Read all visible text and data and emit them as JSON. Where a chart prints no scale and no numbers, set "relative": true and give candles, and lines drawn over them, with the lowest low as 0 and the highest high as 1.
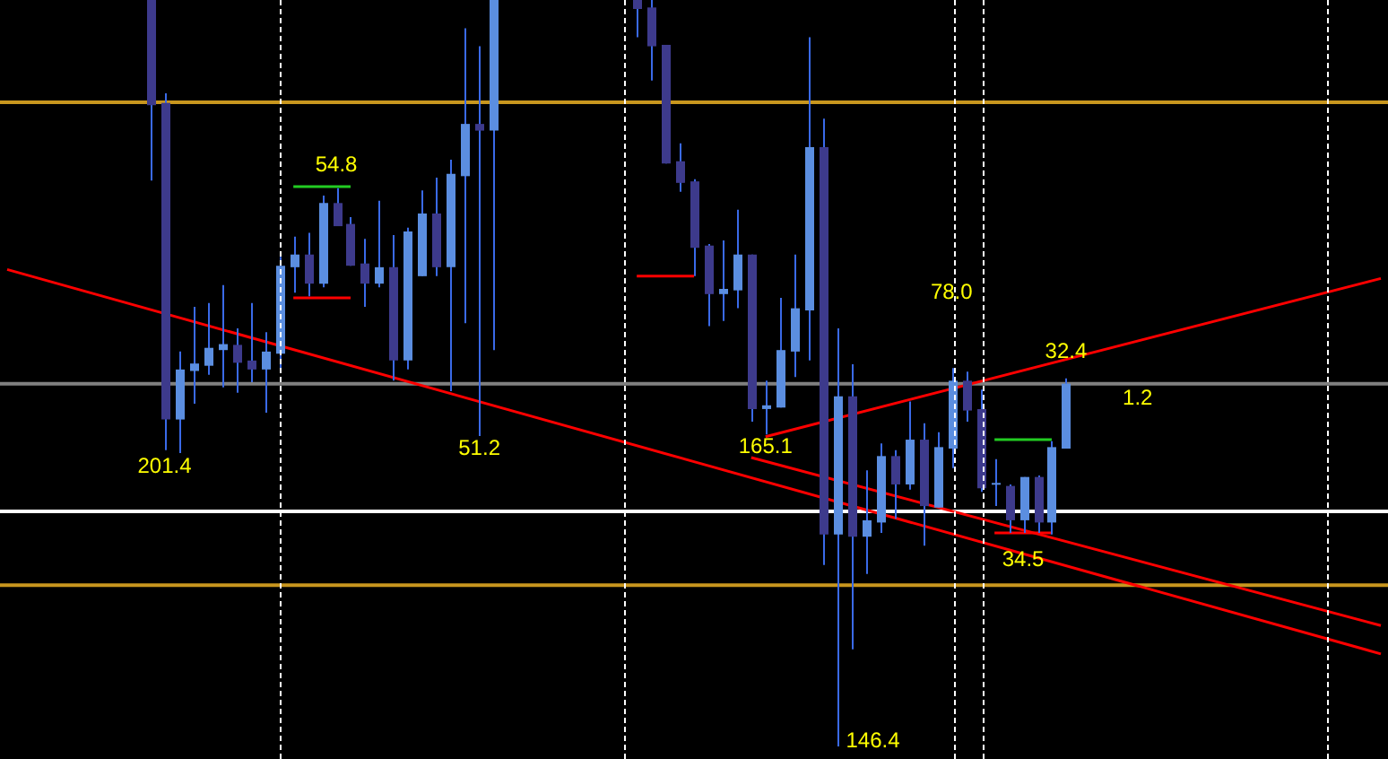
{
  "chart_data": {
    "type": "candlestick",
    "relative": true,
    "legend": false,
    "categories": [
      null,
      null,
      null,
      null,
      null,
      null,
      null,
      null,
      null,
      null,
      null,
      null,
      null,
      null,
      null,
      null,
      null,
      null,
      null,
      null,
      null,
      null,
      null,
      null,
      null,
      null,
      null,
      null,
      null,
      null,
      null,
      null,
      null,
      null,
      null,
      null,
      null,
      null,
      null,
      null,
      null,
      null,
      null,
      null,
      null,
      null,
      null,
      null,
      null,
      null,
      null,
      null,
      null,
      null,
      null,
      null,
      null,
      null,
      null,
      null,
      null,
      null,
      null,
      null,
      null,
      null,
      null,
      null,
      null,
      null,
      null,
      null,
      null,
      null,
      null,
      null,
      null,
      null,
      null,
      null,
      null,
      null,
      null,
      null,
      null,
      null,
      null,
      null,
      null,
      null,
      null,
      null,
      null,
      null,
      null,
      null,
      null
    ],
    "ohlc": [
      null,
      null,
      null,
      null,
      null,
      null,
      null,
      null,
      null,
      null,
      [
        1,
        1,
        0.758,
        0.859
      ],
      [
        0.862,
        0.875,
        0.397,
        0.438
      ],
      [
        0.438,
        0.529,
        0.393,
        0.505
      ],
      [
        0.503,
        0.589,
        0.459,
        0.513
      ],
      [
        0.51,
        0.594,
        0.498,
        0.534
      ],
      [
        0.531,
        0.618,
        0.481,
        0.539
      ],
      [
        0.538,
        0.56,
        0.474,
        0.514
      ],
      [
        0.517,
        0.594,
        0.488,
        0.505
      ],
      [
        0.505,
        0.555,
        0.447,
        0.529
      ],
      [
        0.526,
        0.656,
        0.503,
        0.644
      ],
      [
        0.642,
        0.683,
        0.608,
        0.659
      ],
      [
        0.659,
        0.688,
        0.603,
        0.62
      ],
      [
        0.62,
        0.738,
        0.615,
        0.728
      ],
      [
        0.728,
        0.748,
        0.697,
        0.697
      ],
      [
        0.7,
        0.709,
        0.644,
        0.644
      ],
      [
        0.647,
        0.68,
        0.589,
        0.62
      ],
      [
        0.62,
        0.731,
        0.615,
        0.642
      ],
      [
        0.642,
        0.685,
        0.49,
        0.517
      ],
      [
        0.517,
        0.695,
        0.505,
        0.69
      ],
      [
        0.63,
        0.745,
        0.63,
        0.714
      ],
      [
        0.714,
        0.762,
        0.63,
        0.642
      ],
      [
        0.642,
        0.786,
        0.476,
        0.767
      ],
      [
        0.764,
        0.962,
        0.567,
        0.834
      ],
      [
        0.834,
        0.938,
        0.416,
        0.825
      ],
      [
        0.825,
        1,
        0.531,
        1
      ],
      null,
      null,
      null,
      null,
      null,
      null,
      null,
      null,
      null,
      [
        1,
        1,
        0.95,
        0.988
      ],
      [
        0.99,
        1,
        0.892,
        0.938
      ],
      [
        0.94,
        0.94,
        0.781,
        0.781
      ],
      [
        0.784,
        0.808,
        0.743,
        0.755
      ],
      [
        0.757,
        0.76,
        0.63,
        0.668
      ],
      [
        0.671,
        0.673,
        0.563,
        0.606
      ],
      [
        0.606,
        0.678,
        0.57,
        0.613
      ],
      [
        0.611,
        0.719,
        0.587,
        0.659
      ],
      [
        0.659,
        0.659,
        0.435,
        0.452
      ],
      [
        0.452,
        0.49,
        0.418,
        0.457
      ],
      [
        0.454,
        0.601,
        0.454,
        0.531
      ],
      [
        0.529,
        0.659,
        0.495,
        0.587
      ],
      [
        0.584,
        0.95,
        0.517,
        0.803
      ],
      [
        0.803,
        0.841,
        0.243,
        0.284
      ],
      [
        0.284,
        0.56,
        0,
        0.469
      ],
      [
        0.469,
        0.512,
        0.13,
        0.281
      ],
      [
        0.281,
        0.37,
        0.231,
        0.303
      ],
      [
        0.3,
        0.406,
        0.286,
        0.389
      ],
      [
        0.389,
        0.397,
        0.305,
        0.351
      ],
      [
        0.351,
        0.462,
        0.344,
        0.411
      ],
      [
        0.411,
        0.433,
        0.269,
        0.322
      ],
      [
        0.32,
        0.421,
        0.32,
        0.401
      ],
      [
        0.399,
        0.507,
        0.373,
        0.49
      ],
      [
        0.49,
        0.502,
        0.435,
        0.45
      ],
      [
        0.452,
        0.478,
        0.341,
        0.346
      ],
      [
        0.353,
        0.385,
        0.322,
        0.353
      ],
      [
        0.349,
        0.351,
        0.286,
        0.303
      ],
      [
        0.303,
        0.361,
        0.286,
        0.361
      ],
      [
        0.361,
        0.363,
        0.286,
        0.3
      ],
      [
        0.3,
        0.409,
        0.284,
        0.401
      ],
      [
        0.399,
        0.493,
        0.399,
        0.486
      ],
      null,
      null,
      null,
      null,
      null,
      null,
      null,
      null,
      null,
      null,
      null,
      null,
      null,
      null,
      null,
      null,
      null,
      null,
      null,
      null,
      null,
      null
    ],
    "series": [
      {
        "type": "line",
        "color": "#ff0000",
        "values": [
          0.639,
          null,
          null,
          null,
          null,
          null,
          null,
          null,
          null,
          null,
          null,
          null,
          null,
          null,
          null,
          null,
          null,
          null,
          null,
          null,
          null,
          null,
          null,
          null,
          null,
          null,
          null,
          null,
          null,
          null,
          null,
          null,
          null,
          null,
          null,
          null,
          null,
          null,
          null,
          null,
          null,
          null,
          null,
          null,
          null,
          null,
          null,
          null,
          null,
          null,
          null,
          null,
          null,
          null,
          null,
          null,
          null,
          null,
          null,
          null,
          null,
          null,
          null,
          null,
          null,
          null,
          null,
          null,
          null,
          null,
          null,
          null,
          null,
          null,
          null,
          null,
          null,
          null,
          null,
          null,
          null,
          null,
          null,
          null,
          null,
          null,
          null,
          null,
          null,
          null,
          null,
          null,
          null,
          null,
          null,
          null,
          0.124
        ]
      },
      {
        "type": "line",
        "color": "#ff0000",
        "values": [
          null,
          null,
          null,
          null,
          null,
          null,
          null,
          null,
          null,
          null,
          null,
          null,
          null,
          null,
          null,
          null,
          null,
          null,
          null,
          null,
          null,
          null,
          null,
          null,
          null,
          null,
          null,
          null,
          null,
          null,
          null,
          null,
          null,
          null,
          null,
          null,
          null,
          null,
          null,
          null,
          null,
          null,
          null,
          null,
          null,
          null,
          null,
          null,
          null,
          null,
          null,
          null,
          0.387,
          null,
          null,
          null,
          null,
          null,
          null,
          null,
          null,
          null,
          null,
          null,
          null,
          null,
          null,
          null,
          null,
          null,
          null,
          null,
          null,
          null,
          null,
          null,
          null,
          null,
          null,
          null,
          null,
          null,
          null,
          null,
          null,
          null,
          null,
          null,
          null,
          null,
          null,
          null,
          null,
          null,
          null,
          null,
          0.162
        ]
      },
      {
        "type": "line",
        "color": "#ff0000",
        "values": [
          null,
          null,
          null,
          null,
          null,
          null,
          null,
          null,
          null,
          null,
          null,
          null,
          null,
          null,
          null,
          null,
          null,
          null,
          null,
          null,
          null,
          null,
          null,
          null,
          null,
          null,
          null,
          null,
          null,
          null,
          null,
          null,
          null,
          null,
          null,
          null,
          null,
          null,
          null,
          null,
          null,
          null,
          null,
          null,
          null,
          null,
          null,
          null,
          null,
          null,
          null,
          null,
          null,
          0.415,
          null,
          null,
          null,
          null,
          null,
          null,
          null,
          null,
          null,
          null,
          null,
          null,
          null,
          null,
          null,
          null,
          null,
          null,
          null,
          null,
          null,
          null,
          null,
          null,
          null,
          null,
          null,
          null,
          null,
          null,
          null,
          null,
          null,
          null,
          null,
          null,
          null,
          null,
          null,
          null,
          null,
          null,
          0.627
        ]
      },
      {
        "type": "line",
        "color": "#22cc22",
        "values": [
          null,
          null,
          null,
          null,
          null,
          null,
          null,
          null,
          null,
          null,
          null,
          null,
          null,
          null,
          null,
          null,
          null,
          null,
          null,
          null,
          0.75,
          null,
          null,
          null,
          0.75,
          null,
          null,
          null,
          null,
          null,
          null,
          null,
          null,
          null,
          null,
          null,
          null,
          null,
          null,
          null,
          null,
          null,
          null,
          null,
          null,
          null,
          null,
          null,
          null,
          null,
          null,
          null,
          null,
          null,
          null,
          null,
          null,
          null,
          null,
          null,
          null,
          null,
          null,
          null,
          null,
          null,
          null,
          null,
          null,
          null,
          null,
          null,
          null,
          null,
          null,
          null,
          null,
          null,
          null,
          null,
          null,
          null,
          null,
          null,
          null,
          null,
          null,
          null,
          null,
          null,
          null,
          null,
          null,
          null,
          null,
          null,
          null
        ]
      },
      {
        "type": "line",
        "color": "#ff0000",
        "values": [
          null,
          null,
          null,
          null,
          null,
          null,
          null,
          null,
          null,
          null,
          null,
          null,
          null,
          null,
          null,
          null,
          null,
          null,
          null,
          null,
          0.601,
          null,
          null,
          null,
          0.601,
          null,
          null,
          null,
          null,
          null,
          null,
          null,
          null,
          null,
          null,
          null,
          null,
          null,
          null,
          null,
          null,
          null,
          null,
          null,
          null,
          null,
          null,
          null,
          null,
          null,
          null,
          null,
          null,
          null,
          null,
          null,
          null,
          null,
          null,
          null,
          null,
          null,
          null,
          null,
          null,
          null,
          null,
          null,
          null,
          null,
          null,
          null,
          null,
          null,
          null,
          null,
          null,
          null,
          null,
          null,
          null,
          null,
          null,
          null,
          null,
          null,
          null,
          null,
          null,
          null,
          null,
          null,
          null,
          null,
          null,
          null,
          null
        ]
      },
      {
        "type": "line",
        "color": "#ff0000",
        "values": [
          null,
          null,
          null,
          null,
          null,
          null,
          null,
          null,
          null,
          null,
          null,
          null,
          null,
          null,
          null,
          null,
          null,
          null,
          null,
          null,
          null,
          null,
          null,
          null,
          null,
          null,
          null,
          null,
          null,
          null,
          null,
          null,
          null,
          null,
          null,
          null,
          null,
          null,
          null,
          null,
          null,
          null,
          null,
          null,
          0.63,
          null,
          null,
          null,
          0.63,
          null,
          null,
          null,
          null,
          null,
          null,
          null,
          null,
          null,
          null,
          null,
          null,
          null,
          null,
          null,
          null,
          null,
          null,
          null,
          null,
          null,
          null,
          null,
          null,
          null,
          null,
          null,
          null,
          null,
          null,
          null,
          null,
          null,
          null,
          null,
          null,
          null,
          null,
          null,
          null,
          null,
          null,
          null,
          null,
          null,
          null,
          null,
          null
        ]
      },
      {
        "type": "line",
        "color": "#22cc22",
        "values": [
          null,
          null,
          null,
          null,
          null,
          null,
          null,
          null,
          null,
          null,
          null,
          null,
          null,
          null,
          null,
          null,
          null,
          null,
          null,
          null,
          null,
          null,
          null,
          null,
          null,
          null,
          null,
          null,
          null,
          null,
          null,
          null,
          null,
          null,
          null,
          null,
          null,
          null,
          null,
          null,
          null,
          null,
          null,
          null,
          null,
          null,
          null,
          null,
          null,
          null,
          null,
          null,
          null,
          null,
          null,
          null,
          null,
          null,
          null,
          null,
          null,
          null,
          null,
          null,
          null,
          null,
          null,
          null,
          null,
          0.411,
          null,
          null,
          null,
          0.411,
          null,
          null,
          null,
          null,
          null,
          null,
          null,
          null,
          null,
          null,
          null,
          null,
          null,
          null,
          null,
          null,
          null,
          null,
          null,
          null,
          null,
          null,
          null
        ]
      },
      {
        "type": "line",
        "color": "#ff0000",
        "values": [
          null,
          null,
          null,
          null,
          null,
          null,
          null,
          null,
          null,
          null,
          null,
          null,
          null,
          null,
          null,
          null,
          null,
          null,
          null,
          null,
          null,
          null,
          null,
          null,
          null,
          null,
          null,
          null,
          null,
          null,
          null,
          null,
          null,
          null,
          null,
          null,
          null,
          null,
          null,
          null,
          null,
          null,
          null,
          null,
          null,
          null,
          null,
          null,
          null,
          null,
          null,
          null,
          null,
          null,
          null,
          null,
          null,
          null,
          null,
          null,
          null,
          null,
          null,
          null,
          null,
          null,
          null,
          null,
          null,
          0.286,
          null,
          null,
          null,
          0.286,
          null,
          null,
          null,
          null,
          null,
          null,
          null,
          null,
          null,
          null,
          null,
          null,
          null,
          null,
          null,
          null,
          null,
          null,
          null,
          null,
          null,
          null,
          null
        ]
      }
    ],
    "ref_lines": [
      {
        "axis": "y",
        "value": 0.863,
        "color": "#c8961e"
      },
      {
        "axis": "y",
        "value": 0.486,
        "color": "#808080"
      },
      {
        "axis": "y",
        "value": 0.315,
        "color": "#ffffff"
      },
      {
        "axis": "y",
        "value": 0.216,
        "color": "#c8961e"
      }
    ],
    "annotations": [
      "201.4",
      "54.8",
      "51.2",
      "165.1",
      "146.4",
      "78.0",
      "32.4",
      "1.2",
      "34.5"
    ]
  }
}
